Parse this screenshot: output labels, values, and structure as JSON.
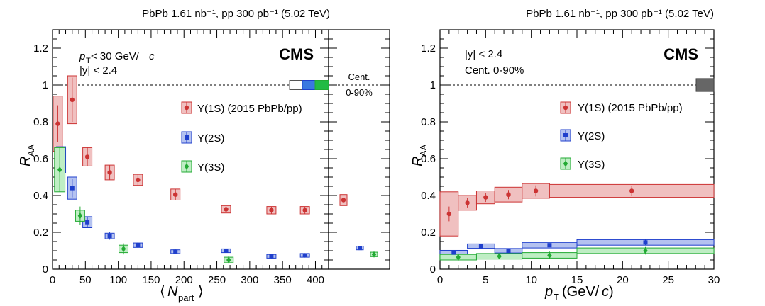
{
  "panels": {
    "left_title": "PbPb 1.61 nb⁻¹, pp 300 pb⁻¹ (5.02 TeV)",
    "right_title": "PbPb 1.61 nb⁻¹, pp 300 pb⁻¹ (5.02 TeV)",
    "left_cms": "CMS",
    "right_cms": "CMS",
    "left_cut_pt": "p_T < 30 GeV/c",
    "left_cut_pt_p": "p",
    "left_cut_pt_sub": "T",
    "left_cut_pt_rest": " < 30 GeV/",
    "left_cut_pt_c": "c",
    "left_cut_y": "|y| < 2.4",
    "right_cut_y": "|y| < 2.4",
    "right_cut_cent": "Cent. 0-90%",
    "inset_label_1": "Cent.",
    "inset_label_2": "0-90%"
  },
  "legend": {
    "s1": "Υ(1S) (2015 PbPb/pp)",
    "s2": "Υ(2S)",
    "s3": "Υ(3S)"
  },
  "colors": {
    "s1_line": "#cc3333",
    "s1_fill": "#f0c0c0",
    "s2_line": "#1f3fcc",
    "s2_fill": "#b4c2f0",
    "s3_line": "#22aa33",
    "s3_fill": "#bfeec4",
    "global_gray": "#666666"
  },
  "chart_data": [
    {
      "type": "scatter",
      "title": "PbPb 1.61 nb⁻¹, pp 300 pb⁻¹ (5.02 TeV)",
      "xlabel": "⟨N_part⟩",
      "ylabel": "R_AA",
      "xlim": [
        0,
        420
      ],
      "ylim": [
        0,
        1.3
      ],
      "xticks": [
        "0",
        "50",
        "100",
        "150",
        "200",
        "250",
        "300",
        "350",
        "400"
      ],
      "xtick_values": [
        0,
        50,
        100,
        150,
        200,
        250,
        300,
        350,
        400
      ],
      "yticks": [
        "0",
        "0.2",
        "0.4",
        "0.6",
        "0.8",
        "1",
        "1.2"
      ],
      "ytick_values": [
        0,
        0.2,
        0.4,
        0.6,
        0.8,
        1.0,
        1.2
      ],
      "series": [
        {
          "name": "Υ(1S) (2015 PbPb/pp)",
          "x": [
            8,
            30,
            53,
            87,
            130,
            187,
            264,
            333,
            384
          ],
          "y": [
            0.79,
            0.92,
            0.61,
            0.525,
            0.485,
            0.405,
            0.325,
            0.32,
            0.32
          ],
          "yerr": [
            0.1,
            0.12,
            0.05,
            0.04,
            0.03,
            0.03,
            0.02,
            0.02,
            0.02
          ],
          "syst": [
            0.15,
            0.13,
            0.05,
            0.04,
            0.03,
            0.03,
            0.02,
            0.02,
            0.02
          ],
          "boxw": [
            7,
            7,
            7,
            7,
            7,
            7,
            7,
            7,
            7
          ]
        },
        {
          "name": "Υ(2S)",
          "x": [
            13,
            30,
            53,
            87,
            130,
            187,
            264,
            333,
            384
          ],
          "y": [
            0.595,
            0.44,
            0.255,
            0.18,
            0.13,
            0.095,
            0.1,
            0.07,
            0.075
          ],
          "yerr": [
            0.06,
            0.05,
            0.03,
            0.02,
            0.015,
            0.012,
            0.012,
            0.012,
            0.012
          ],
          "syst": [
            0.07,
            0.06,
            0.03,
            0.015,
            0.012,
            0.01,
            0.01,
            0.01,
            0.01
          ],
          "boxw": [
            7,
            7,
            7,
            7,
            7,
            7,
            7,
            7,
            7
          ]
        },
        {
          "name": "Υ(3S)",
          "x": [
            11,
            42,
            108,
            268
          ],
          "y": [
            0.54,
            0.29,
            0.11,
            0.05
          ],
          "yerr": [
            0.12,
            0.05,
            0.03,
            0.02
          ],
          "syst": [
            0.12,
            0.03,
            0.02,
            0.015
          ],
          "boxw": [
            8,
            7,
            7,
            7
          ]
        }
      ],
      "inset": {
        "label": "Cent. 0-90%",
        "values": [
          {
            "series": "Υ(1S) (2015 PbPb/pp)",
            "y": 0.375,
            "syst": 0.03
          },
          {
            "series": "Υ(2S)",
            "y": 0.115,
            "syst": 0.01
          },
          {
            "series": "Υ(3S)",
            "y": 0.08,
            "syst": 0.012
          }
        ]
      },
      "global_uncertainty_boxes": [
        "white",
        "Υ(2S)",
        "Υ(3S)"
      ],
      "reference_line": 1
    },
    {
      "type": "scatter",
      "title": "PbPb 1.61 nb⁻¹, pp 300 pb⁻¹ (5.02 TeV)",
      "xlabel": "p_T (GeV/c)",
      "ylabel": "R_AA",
      "xlim": [
        0,
        30
      ],
      "ylim": [
        0,
        1.3
      ],
      "xticks": [
        "0",
        "5",
        "10",
        "15",
        "20",
        "25",
        "30"
      ],
      "xtick_values": [
        0,
        5,
        10,
        15,
        20,
        25,
        30
      ],
      "yticks": [
        "0",
        "0.2",
        "0.4",
        "0.6",
        "0.8",
        "1",
        "1.2"
      ],
      "ytick_values": [
        0,
        0.2,
        0.4,
        0.6,
        0.8,
        1.0,
        1.2
      ],
      "series": [
        {
          "name": "Υ(1S) (2015 PbPb/pp)",
          "bins": [
            [
              0,
              2
            ],
            [
              2,
              4
            ],
            [
              4,
              6
            ],
            [
              6,
              9
            ],
            [
              9,
              12
            ],
            [
              12,
              30
            ]
          ],
          "x": [
            1,
            3,
            5,
            7.5,
            10.5,
            21
          ],
          "y": [
            0.3,
            0.36,
            0.39,
            0.405,
            0.425,
            0.425
          ],
          "yerr": [
            0.04,
            0.025,
            0.025,
            0.025,
            0.03,
            0.025
          ],
          "syst": [
            0.12,
            0.04,
            0.035,
            0.04,
            0.04,
            0.035
          ]
        },
        {
          "name": "Υ(2S)",
          "bins": [
            [
              0,
              3
            ],
            [
              3,
              6
            ],
            [
              6,
              9
            ],
            [
              9,
              15
            ],
            [
              15,
              30
            ]
          ],
          "x": [
            1.5,
            4.5,
            7.5,
            12,
            22.5
          ],
          "y": [
            0.09,
            0.125,
            0.1,
            0.13,
            0.145
          ],
          "yerr": [
            0.01,
            0.01,
            0.012,
            0.01,
            0.015
          ],
          "syst": [
            0.012,
            0.012,
            0.012,
            0.015,
            0.015
          ]
        },
        {
          "name": "Υ(3S)",
          "bins": [
            [
              0,
              4
            ],
            [
              4,
              9
            ],
            [
              9,
              15
            ],
            [
              15,
              30
            ]
          ],
          "x": [
            2,
            6.5,
            12,
            22.5
          ],
          "y": [
            0.065,
            0.07,
            0.075,
            0.1
          ],
          "yerr": [
            0.02,
            0.015,
            0.02,
            0.02
          ],
          "syst": [
            0.015,
            0.015,
            0.015,
            0.015
          ]
        }
      ],
      "global_uncertainty_box": "gray",
      "reference_line": 1
    }
  ]
}
